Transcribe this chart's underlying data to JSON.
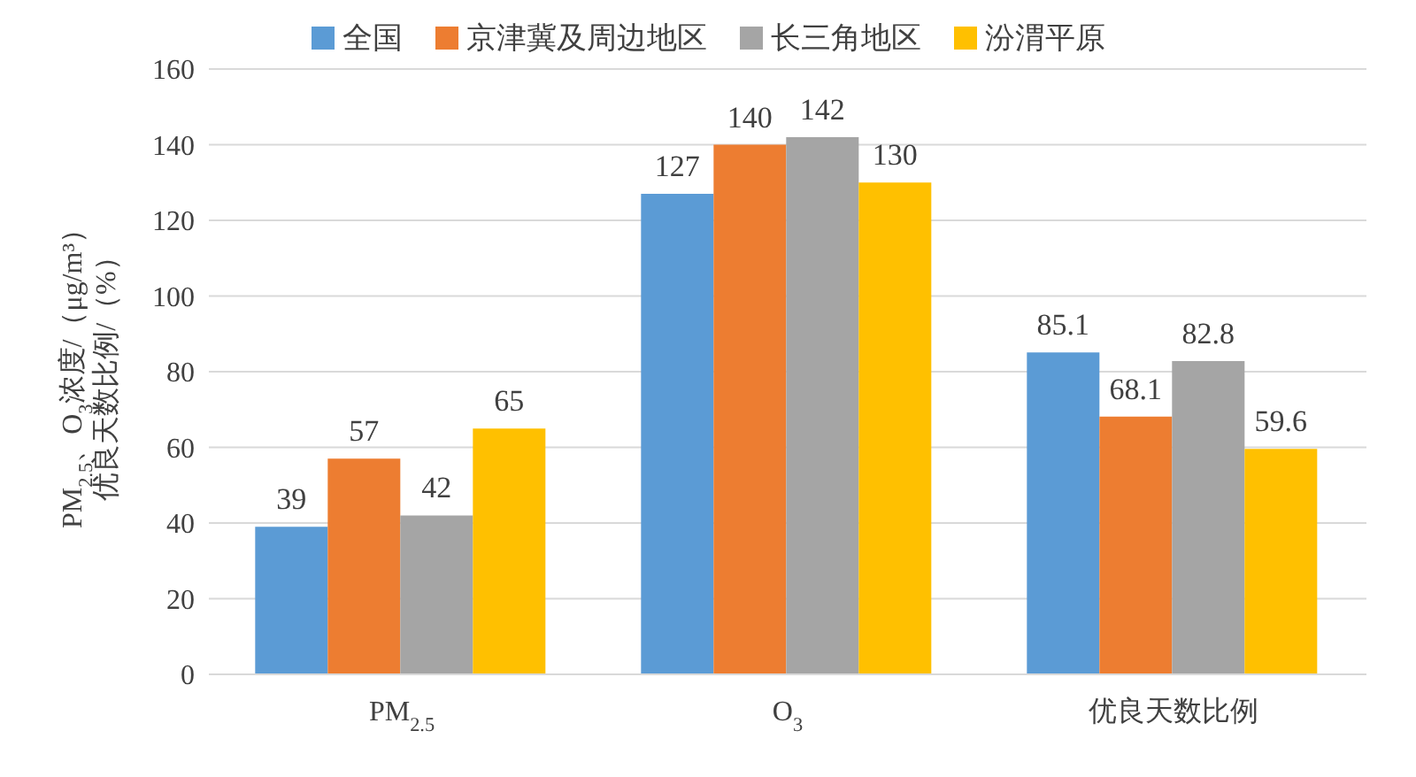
{
  "chart_data": {
    "type": "bar",
    "ylabel": "PM$_{2.5}$、O$_{3}$浓度/（μg/m³）优良天数比例/（%）",
    "categories": [
      "PM$_{2.5}$",
      "O$_{3}$",
      "优良天数比例"
    ],
    "series": [
      {
        "name": "全国",
        "color": "#5b9bd5",
        "values": [
          39,
          127,
          85.1
        ]
      },
      {
        "name": "京津冀及周边地区",
        "color": "#ed7d31",
        "values": [
          57,
          140,
          68.1
        ]
      },
      {
        "name": "长三角地区",
        "color": "#a5a5a5",
        "values": [
          42,
          142,
          82.8
        ]
      },
      {
        "name": "汾渭平原",
        "color": "#ffc000",
        "values": [
          65,
          130,
          59.6
        ]
      }
    ],
    "ylim": [
      0,
      160
    ],
    "yticks": [
      0,
      20,
      40,
      60,
      80,
      100,
      120,
      140,
      160
    ],
    "grid": "y",
    "legend": "top",
    "data_labels": true
  }
}
